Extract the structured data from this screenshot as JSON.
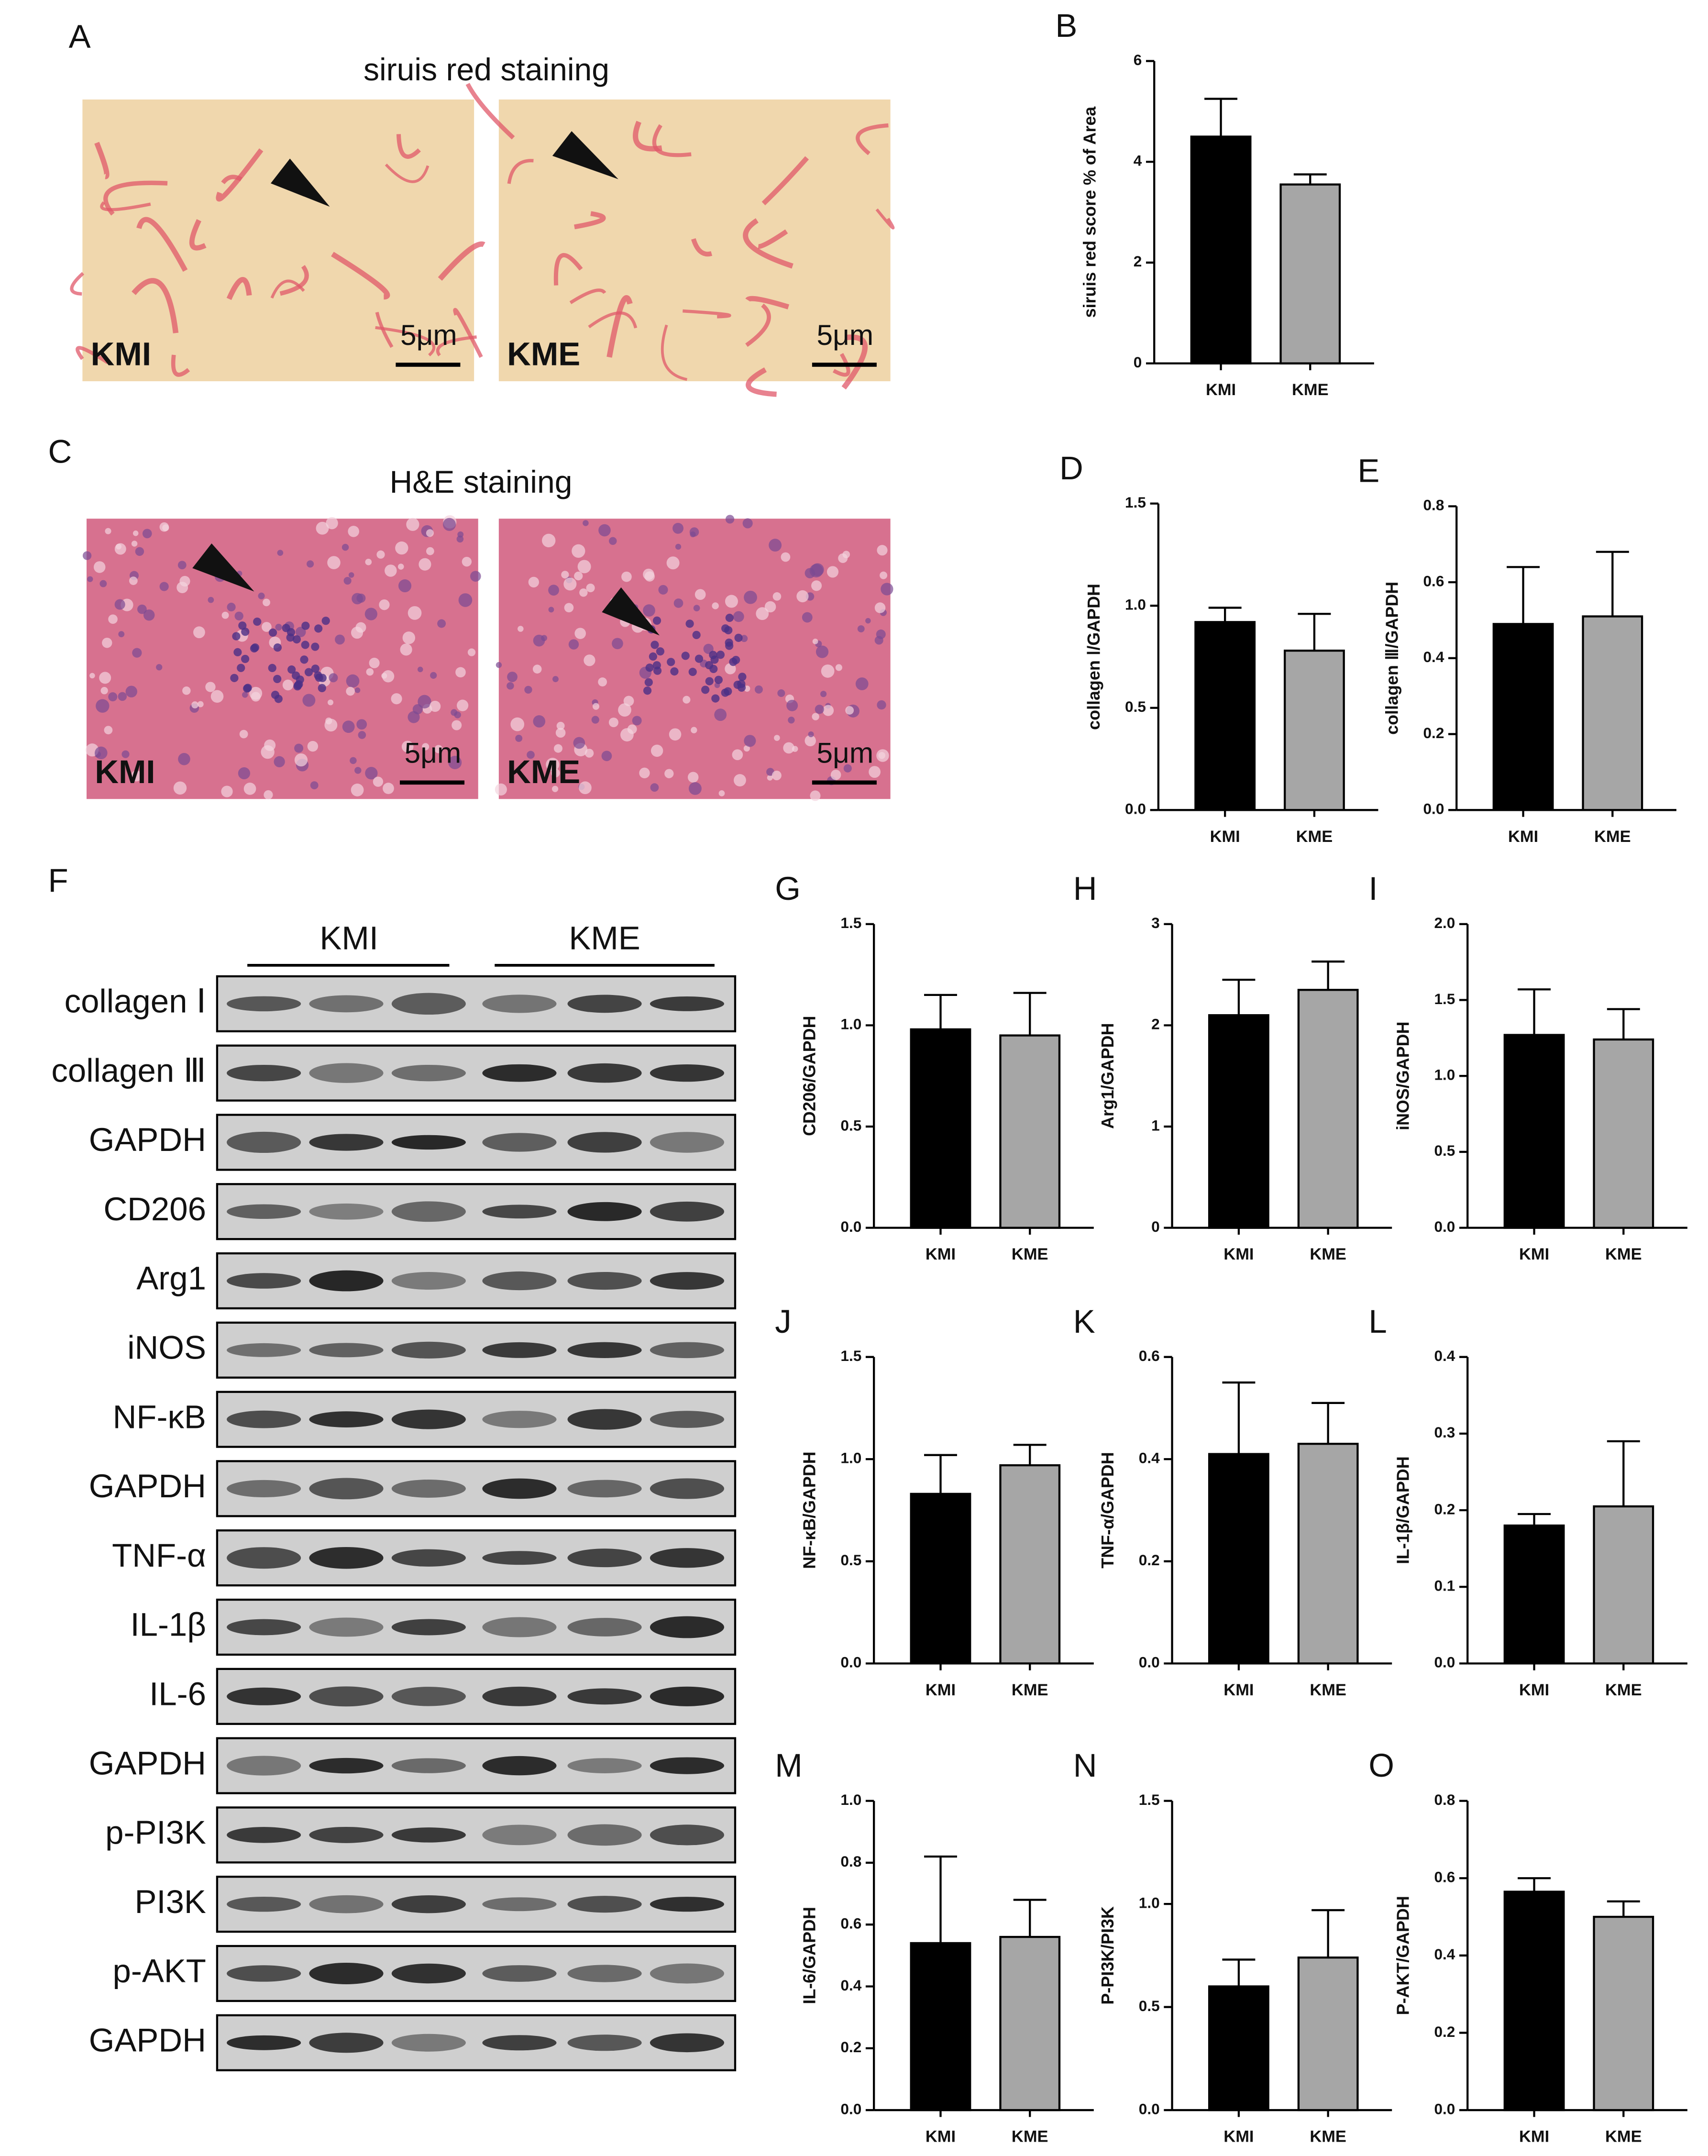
{
  "figure": {
    "panels": [
      "A",
      "C",
      "F"
    ],
    "sirius": {
      "title": "siruis red staining",
      "labels": [
        "KMI",
        "KME"
      ],
      "scale": [
        "5μm",
        "5μm"
      ]
    },
    "he": {
      "title": "H&E staining",
      "labels": [
        "KMI",
        "KME"
      ],
      "scale": [
        "5μm",
        "5μm"
      ]
    },
    "blot": {
      "groups": [
        "KMI",
        "KME"
      ],
      "rows": [
        "collagen Ⅰ",
        "collagen Ⅲ",
        "GAPDH",
        "CD206",
        "Arg1",
        "iNOS",
        "NF-κB",
        "GAPDH",
        "TNF-α",
        "IL-1β",
        "IL-6",
        "GAPDH",
        "p-PI3K",
        "PI3K",
        "p-AKT",
        "GAPDH"
      ]
    }
  },
  "chart_data": [
    {
      "type": "bar",
      "panel": "B",
      "ylabel": "siruis red score % of Area",
      "categories": [
        "KMI",
        "KME"
      ],
      "values": [
        4.5,
        3.55
      ],
      "errors": [
        0.75,
        0.2
      ],
      "colors": [
        "#000000",
        "#a6a6a6"
      ],
      "ylim": [
        0,
        6
      ],
      "yticks": [
        0,
        2,
        4,
        6
      ]
    },
    {
      "type": "bar",
      "panel": "D",
      "ylabel": "collagen Ⅰ/GAPDH",
      "categories": [
        "KMI",
        "KME"
      ],
      "values": [
        0.92,
        0.78
      ],
      "errors": [
        0.07,
        0.18
      ],
      "colors": [
        "#000000",
        "#a6a6a6"
      ],
      "ylim": [
        0,
        1.5
      ],
      "yticks": [
        {
          "value": 0,
          "label": "0.0"
        },
        0.5,
        {
          "value": 1,
          "label": "1.0"
        },
        1.5
      ]
    },
    {
      "type": "bar",
      "panel": "E",
      "ylabel": "collagen Ⅲ/GAPDH",
      "categories": [
        "KMI",
        "KME"
      ],
      "values": [
        0.49,
        0.51
      ],
      "errors": [
        0.15,
        0.17
      ],
      "colors": [
        "#000000",
        "#a6a6a6"
      ],
      "ylim": [
        0,
        0.8
      ],
      "yticks": [
        {
          "value": 0,
          "label": "0.0"
        },
        0.2,
        0.4,
        0.6,
        0.8
      ]
    },
    {
      "type": "bar",
      "panel": "G",
      "ylabel": "CD206/GAPDH",
      "categories": [
        "KMI",
        "KME"
      ],
      "values": [
        0.98,
        0.95
      ],
      "errors": [
        0.17,
        0.21
      ],
      "colors": [
        "#000000",
        "#a6a6a6"
      ],
      "ylim": [
        0,
        1.5
      ],
      "yticks": [
        {
          "value": 0,
          "label": "0.0"
        },
        0.5,
        {
          "value": 1,
          "label": "1.0"
        },
        1.5
      ]
    },
    {
      "type": "bar",
      "panel": "H",
      "ylabel": "Arg1/GAPDH",
      "categories": [
        "KMI",
        "KME"
      ],
      "values": [
        2.1,
        2.35
      ],
      "errors": [
        0.35,
        0.28
      ],
      "colors": [
        "#000000",
        "#a6a6a6"
      ],
      "ylim": [
        0,
        3
      ],
      "yticks": [
        0,
        1,
        2,
        3
      ]
    },
    {
      "type": "bar",
      "panel": "I",
      "ylabel": "iNOS/GAPDH",
      "categories": [
        "KMI",
        "KME"
      ],
      "values": [
        1.27,
        1.24
      ],
      "errors": [
        0.3,
        0.2
      ],
      "colors": [
        "#000000",
        "#a6a6a6"
      ],
      "ylim": [
        0,
        2
      ],
      "yticks": [
        {
          "value": 0,
          "label": "0.0"
        },
        0.5,
        {
          "value": 1,
          "label": "1.0"
        },
        1.5,
        {
          "value": 2,
          "label": "2.0"
        }
      ]
    },
    {
      "type": "bar",
      "panel": "J",
      "ylabel": "NF-κB/GAPDH",
      "categories": [
        "KMI",
        "KME"
      ],
      "values": [
        0.83,
        0.97
      ],
      "errors": [
        0.19,
        0.1
      ],
      "colors": [
        "#000000",
        "#a6a6a6"
      ],
      "ylim": [
        0,
        1.5
      ],
      "yticks": [
        {
          "value": 0,
          "label": "0.0"
        },
        0.5,
        {
          "value": 1,
          "label": "1.0"
        },
        1.5
      ]
    },
    {
      "type": "bar",
      "panel": "K",
      "ylabel": "TNF-α/GAPDH",
      "categories": [
        "KMI",
        "KME"
      ],
      "values": [
        0.41,
        0.43
      ],
      "errors": [
        0.14,
        0.08
      ],
      "colors": [
        "#000000",
        "#a6a6a6"
      ],
      "ylim": [
        0,
        0.6
      ],
      "yticks": [
        {
          "value": 0,
          "label": "0.0"
        },
        0.2,
        0.4,
        0.6
      ]
    },
    {
      "type": "bar",
      "panel": "L",
      "ylabel": "IL-1β/GAPDH",
      "categories": [
        "KMI",
        "KME"
      ],
      "values": [
        0.18,
        0.205
      ],
      "errors": [
        0.015,
        0.085
      ],
      "colors": [
        "#000000",
        "#a6a6a6"
      ],
      "ylim": [
        0,
        0.4
      ],
      "yticks": [
        {
          "value": 0,
          "label": "0.0"
        },
        0.1,
        0.2,
        0.3,
        0.4
      ]
    },
    {
      "type": "bar",
      "panel": "M",
      "ylabel": "IL-6/GAPDH",
      "categories": [
        "KMI",
        "KME"
      ],
      "values": [
        0.54,
        0.56
      ],
      "errors": [
        0.28,
        0.12
      ],
      "colors": [
        "#000000",
        "#a6a6a6"
      ],
      "ylim": [
        0,
        1
      ],
      "yticks": [
        {
          "value": 0,
          "label": "0.0"
        },
        0.2,
        0.4,
        0.6,
        0.8,
        {
          "value": 1,
          "label": "1.0"
        }
      ]
    },
    {
      "type": "bar",
      "panel": "N",
      "ylabel": "P-PI3K/PI3K",
      "categories": [
        "KMI",
        "KME"
      ],
      "values": [
        0.6,
        0.74
      ],
      "errors": [
        0.13,
        0.23
      ],
      "colors": [
        "#000000",
        "#a6a6a6"
      ],
      "ylim": [
        0,
        1.5
      ],
      "yticks": [
        {
          "value": 0,
          "label": "0.0"
        },
        0.5,
        {
          "value": 1,
          "label": "1.0"
        },
        1.5
      ]
    },
    {
      "type": "bar",
      "panel": "O",
      "ylabel": "P-AKT/GAPDH",
      "categories": [
        "KMI",
        "KME"
      ],
      "values": [
        0.565,
        0.5
      ],
      "errors": [
        0.035,
        0.04
      ],
      "colors": [
        "#000000",
        "#a6a6a6"
      ],
      "ylim": [
        0,
        0.8
      ],
      "yticks": [
        {
          "value": 0,
          "label": "0.0"
        },
        0.2,
        0.4,
        0.6,
        0.8
      ]
    }
  ]
}
